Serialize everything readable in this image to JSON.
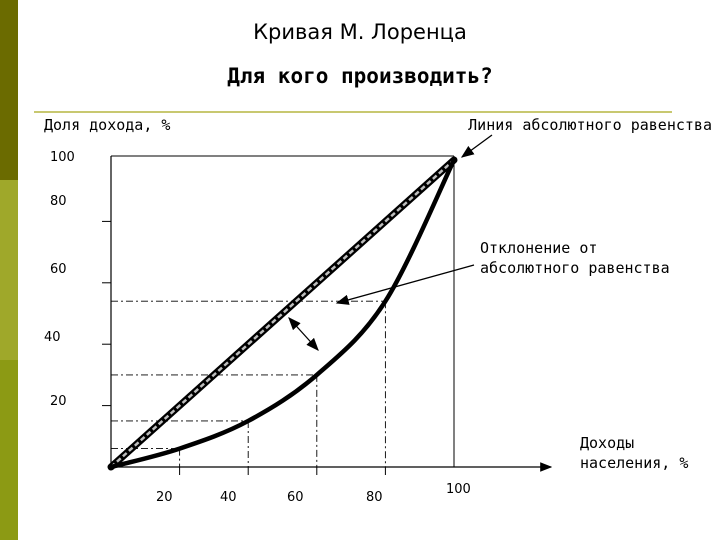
{
  "colors": {
    "side_bar_top": "#6b6b00",
    "side_bar_mid": "#9fa82a",
    "side_bar_bottom": "#8c9a14",
    "rule": "#c8c870",
    "ink": "#000000"
  },
  "header": {
    "title": "Кривая М. Лоренца",
    "subtitle": "Для кого производить?"
  },
  "chart_data": {
    "type": "line",
    "ylabel": "Доля дохода, %",
    "xlabel": "Доходы населения, %",
    "xlim": [
      0,
      100
    ],
    "ylim": [
      0,
      100
    ],
    "x_ticks": [
      "20",
      "40",
      "60",
      "80",
      "100"
    ],
    "y_ticks": [
      "20",
      "40",
      "60",
      "80",
      "100"
    ],
    "series": [
      {
        "name": "Линия абсолютного равенства",
        "x": [
          0,
          100
        ],
        "y": [
          0,
          100
        ]
      },
      {
        "name": "",
        "x": [
          0,
          20,
          40,
          60,
          80,
          100
        ],
        "y": [
          0,
          6,
          15,
          30,
          54,
          100
        ]
      }
    ],
    "guide_points": [
      {
        "x": 20,
        "y": 6
      },
      {
        "x": 40,
        "y": 15
      },
      {
        "x": 60,
        "y": 30
      },
      {
        "x": 80,
        "y": 54
      }
    ],
    "annotations": [
      {
        "text": "Отклонение от абсолютного равенства"
      }
    ]
  }
}
